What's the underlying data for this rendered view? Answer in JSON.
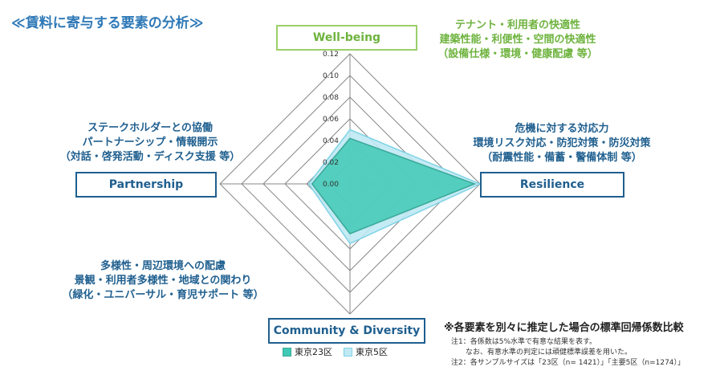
{
  "title": "≪賃料に寄与する要素の分析≫",
  "colors": {
    "tokyo23": "#3fc9b4",
    "tokyo5": "#bfe9f3",
    "tokyo23_stroke": "#3aa89a",
    "tokyo5_stroke": "#7fd3e6",
    "grid": "#888888"
  },
  "boxes": {
    "wellbeing": "Well-being",
    "resilience": "Resilience",
    "partnership": "Partnership",
    "community": "Community & Diversity"
  },
  "descriptions": {
    "wellbeing": [
      "テナント・利用者の快適性",
      "建築性能・利便性・空間の快適性",
      "（設備仕様・環境・健康配慮 等）"
    ],
    "resilience": [
      "危機に対する対応力",
      "環境リスク対応・防犯対策・防災対策",
      "（耐震性能・備蓄・警備体制 等）"
    ],
    "partnership": [
      "ステークホルダーとの協働",
      "パートナーシップ・情報開示",
      "（対話・啓発活動・ディスク支援 等）"
    ],
    "community": [
      "多様性・周辺環境への配慮",
      "景観・利用者多様性・地域との関わり",
      "（緑化・ユニバーサル・育児サポート 等）"
    ]
  },
  "note_title": "※各要素を別々に推定した場合の標準回帰係数比較",
  "notes": [
    "注1：各係数は5%水準で有意な結果を表す。",
    "　　なお、有意水準の判定には頑健標準誤差を用いた。",
    "注2：各サンプルサイズは「23区（n= 1421）」「主要5区（n=1274）」"
  ],
  "legend": {
    "tokyo23": "東京23区",
    "tokyo5": "東京5区"
  },
  "chart_data": {
    "type": "radar",
    "axes": [
      "Well-being",
      "Resilience",
      "Community & Diversity",
      "Partnership"
    ],
    "tick_labels": [
      "0.00",
      "0.02",
      "0.04",
      "0.06",
      "0.08",
      "0.10",
      "0.12"
    ],
    "range": [
      0,
      0.12
    ],
    "grid": true,
    "legend_position": "bottom",
    "series": [
      {
        "name": "東京23区",
        "values": [
          0.042,
          0.115,
          0.046,
          0.035
        ]
      },
      {
        "name": "東京5区",
        "values": [
          0.05,
          0.12,
          0.055,
          0.038
        ]
      }
    ]
  }
}
